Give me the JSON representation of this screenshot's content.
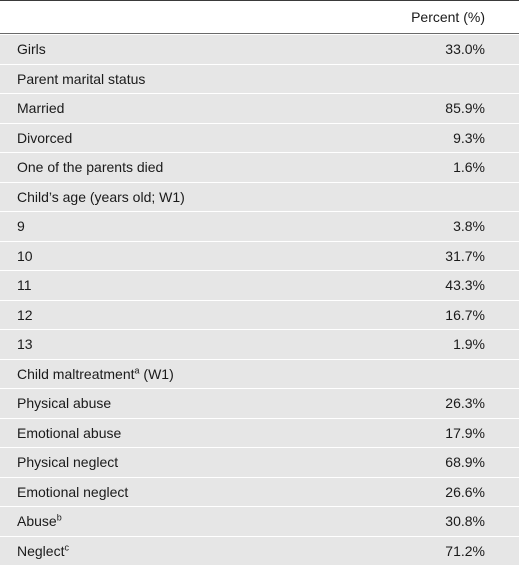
{
  "header": {
    "label": "",
    "value": "Percent (%)"
  },
  "rows": [
    {
      "label": "Girls",
      "sup": "",
      "value": "33.0%"
    },
    {
      "label": "Parent marital status",
      "sup": "",
      "value": ""
    },
    {
      "label": "Married",
      "sup": "",
      "value": "85.9%"
    },
    {
      "label": "Divorced",
      "sup": "",
      "value": "9.3%"
    },
    {
      "label": "One of the parents died",
      "sup": "",
      "value": "1.6%"
    },
    {
      "label": "Child’s age (years old; W1)",
      "sup": "",
      "value": ""
    },
    {
      "label": "9",
      "sup": "",
      "value": "3.8%"
    },
    {
      "label": "10",
      "sup": "",
      "value": "31.7%"
    },
    {
      "label": "11",
      "sup": "",
      "value": "43.3%"
    },
    {
      "label": "12",
      "sup": "",
      "value": "16.7%"
    },
    {
      "label": "13",
      "sup": "",
      "value": "1.9%"
    },
    {
      "label": "Child maltreatment",
      "sup": "a",
      "label_suffix": " (W1)",
      "value": ""
    },
    {
      "label": "Physical abuse",
      "sup": "",
      "value": "26.3%"
    },
    {
      "label": "Emotional abuse",
      "sup": "",
      "value": "17.9%"
    },
    {
      "label": "Physical neglect",
      "sup": "",
      "value": "68.9%"
    },
    {
      "label": "Emotional neglect",
      "sup": "",
      "value": "26.6%"
    },
    {
      "label": "Abuse",
      "sup": "b",
      "value": "30.8%"
    },
    {
      "label": "Neglect",
      "sup": "c",
      "value": "71.2%"
    }
  ]
}
